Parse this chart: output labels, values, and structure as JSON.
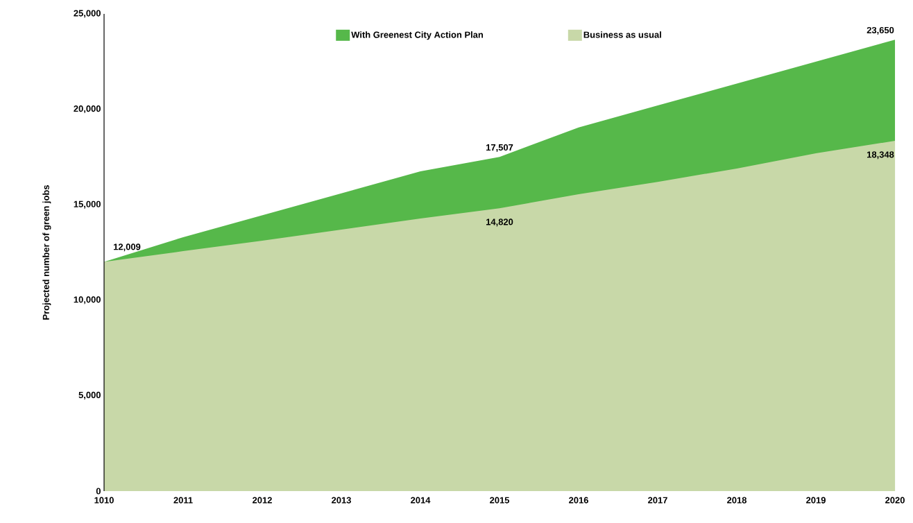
{
  "chart_data": {
    "type": "area",
    "ylabel": "Projected number of green jobs",
    "categories": [
      "1010",
      "2011",
      "2012",
      "2013",
      "2014",
      "2015",
      "2016",
      "2017",
      "2018",
      "2019",
      "2020"
    ],
    "series": [
      {
        "name": "With Greenest City Action Plan",
        "color": "#56b84a",
        "values": [
          12009,
          13300,
          14450,
          15600,
          16750,
          17507,
          19050,
          20200,
          21350,
          22500,
          23650
        ],
        "value_labels": [
          "12,009",
          null,
          null,
          null,
          null,
          "17,507",
          null,
          null,
          null,
          null,
          "23,650"
        ]
      },
      {
        "name": "Business as usual",
        "color": "#c8d8a8",
        "values": [
          12009,
          12570,
          13120,
          13700,
          14280,
          14820,
          15550,
          16200,
          16900,
          17700,
          18348
        ],
        "value_labels": [
          null,
          null,
          null,
          null,
          null,
          "14,820",
          null,
          null,
          null,
          null,
          "18,348"
        ]
      }
    ],
    "ylim": [
      0,
      25000
    ],
    "yticks": [
      {
        "value": 0,
        "label": "0"
      },
      {
        "value": 5000,
        "label": "5,000"
      },
      {
        "value": 10000,
        "label": "10,000"
      },
      {
        "value": 15000,
        "label": "15,000"
      },
      {
        "value": 20000,
        "label": "20,000"
      },
      {
        "value": 25000,
        "label": "25,000"
      }
    ],
    "legend": "top",
    "grid": false
  }
}
